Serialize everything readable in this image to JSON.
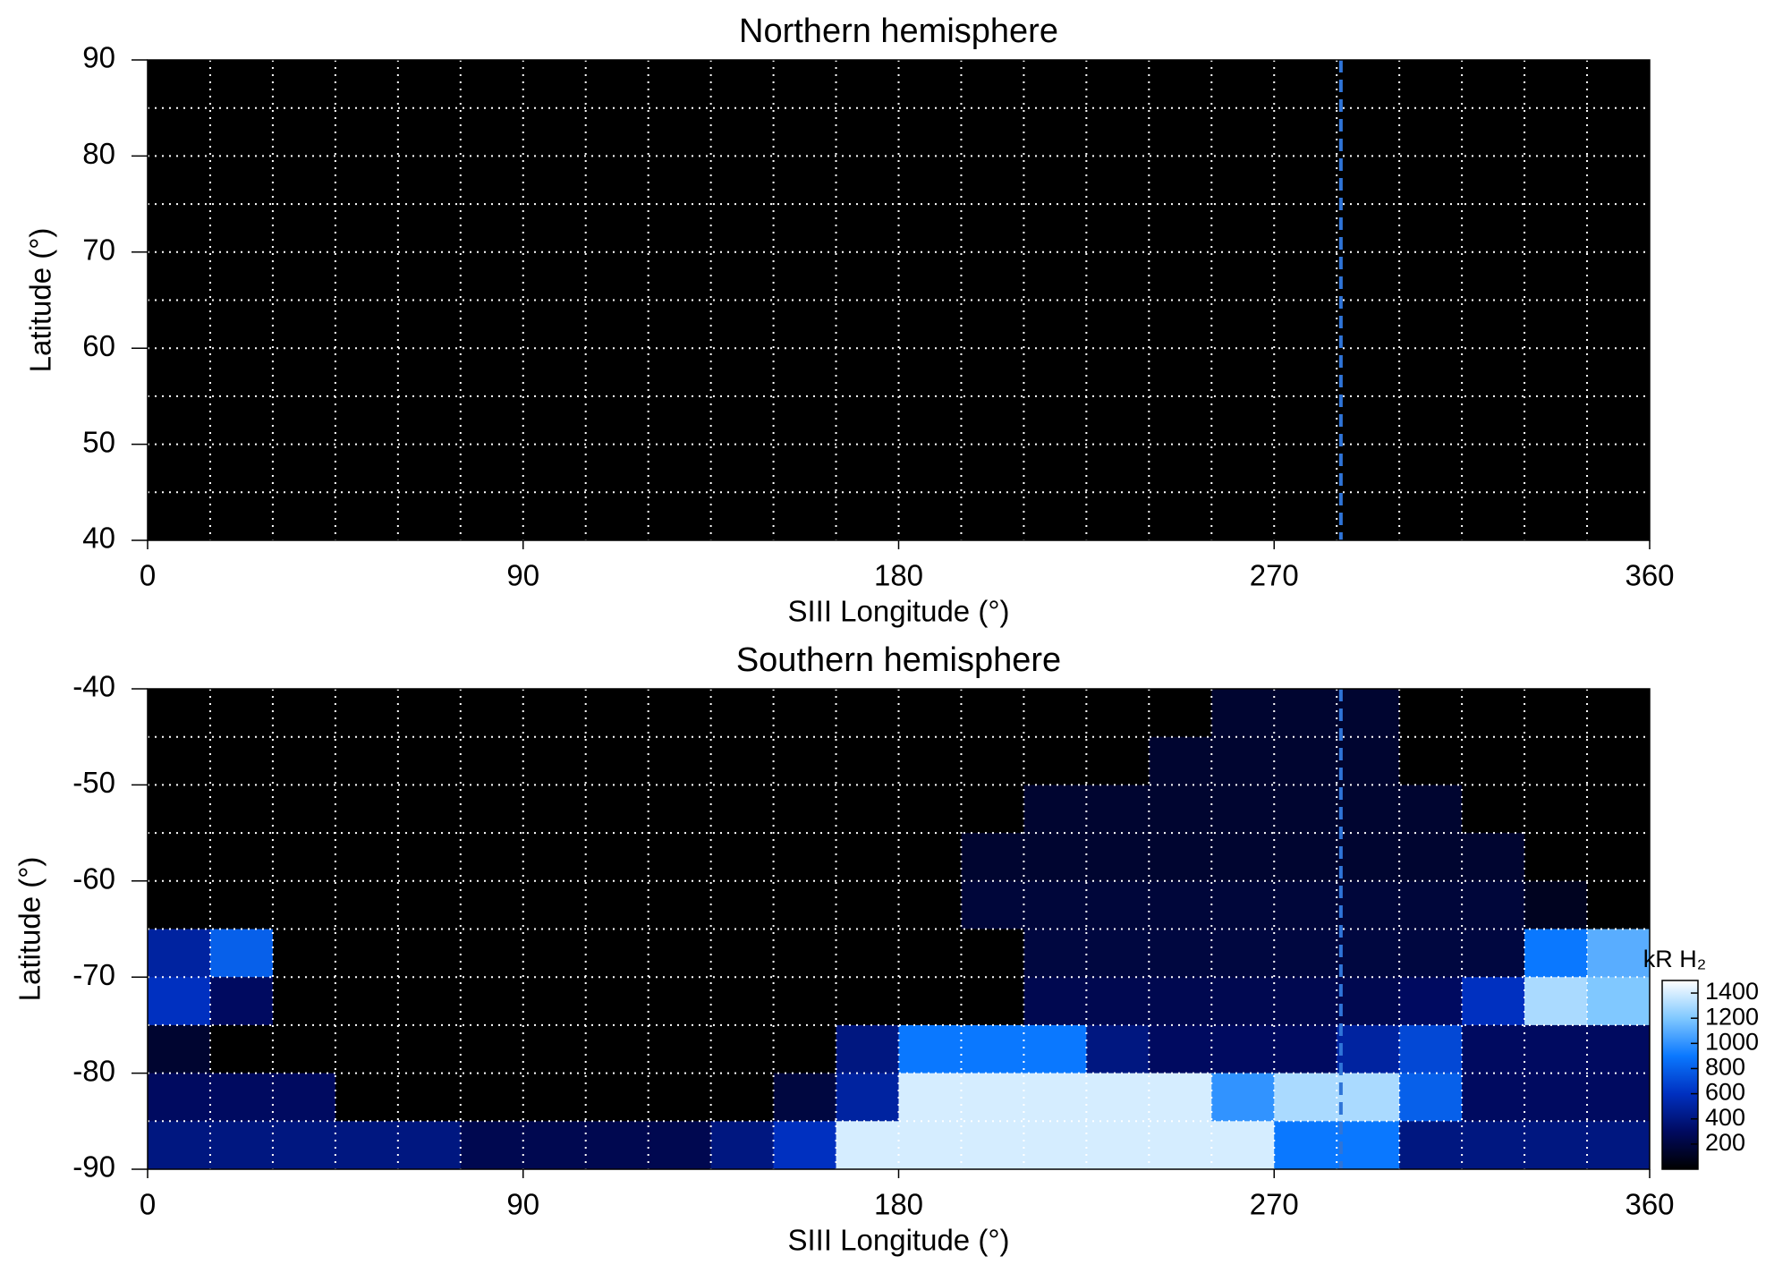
{
  "chart_data": [
    {
      "type": "heatmap",
      "title": "Northern hemisphere",
      "xlabel": "SIII Longitude (°)",
      "ylabel": "Latitude (°)",
      "xlim": [
        0,
        360
      ],
      "xticks": [
        0,
        90,
        180,
        270,
        360
      ],
      "ylim": [
        40,
        90
      ],
      "yticks": [
        40,
        50,
        60,
        70,
        80,
        90
      ],
      "xgrid": [
        15,
        30,
        45,
        60,
        75,
        90,
        105,
        120,
        135,
        150,
        165,
        180,
        195,
        210,
        225,
        240,
        255,
        270,
        285,
        300,
        315,
        330,
        345
      ],
      "ygrid": [
        45,
        50,
        55,
        60,
        65,
        70,
        75,
        80,
        85
      ],
      "vline": 286,
      "vline_color": "#2f74d8"
    },
    {
      "type": "heatmap",
      "title": "Southern hemisphere",
      "xlabel": "SIII Longitude (°)",
      "ylabel": "Latitude (°)",
      "xlim": [
        0,
        360
      ],
      "xticks": [
        0,
        90,
        180,
        270,
        360
      ],
      "ylim": [
        -90,
        -40
      ],
      "yticks": [
        -90,
        -80,
        -70,
        -60,
        -50,
        -40
      ],
      "xgrid": [
        15,
        30,
        45,
        60,
        75,
        90,
        105,
        120,
        135,
        150,
        165,
        180,
        195,
        210,
        225,
        240,
        255,
        270,
        285,
        300,
        315,
        330,
        345
      ],
      "ygrid": [
        -85,
        -80,
        -75,
        -70,
        -65,
        -60,
        -55,
        -50,
        -45
      ],
      "vline": 286,
      "vline_color": "#2f74d8",
      "xbins": [
        0,
        15,
        30,
        45,
        60,
        75,
        90,
        105,
        120,
        135,
        150,
        165,
        180,
        195,
        210,
        225,
        240,
        255,
        270,
        285,
        300,
        315,
        330,
        345,
        360
      ],
      "ybins": [
        -40,
        -45,
        -50,
        -55,
        -60,
        -65,
        -70,
        -75,
        -80,
        -85,
        -90
      ],
      "z": [
        [
          0,
          0,
          0,
          0,
          0,
          0,
          0,
          0,
          0,
          0,
          0,
          0,
          0,
          0,
          0,
          0,
          0,
          150,
          150,
          150,
          0,
          0,
          0,
          0
        ],
        [
          0,
          0,
          0,
          0,
          0,
          0,
          0,
          0,
          0,
          0,
          0,
          0,
          0,
          0,
          0,
          0,
          150,
          150,
          150,
          150,
          0,
          0,
          0,
          0
        ],
        [
          0,
          0,
          0,
          0,
          0,
          0,
          0,
          0,
          0,
          0,
          0,
          0,
          0,
          0,
          150,
          150,
          150,
          150,
          150,
          150,
          150,
          0,
          0,
          0
        ],
        [
          0,
          0,
          0,
          0,
          0,
          0,
          0,
          0,
          0,
          0,
          0,
          0,
          0,
          150,
          150,
          150,
          150,
          150,
          150,
          150,
          150,
          150,
          0,
          0
        ],
        [
          0,
          0,
          0,
          0,
          0,
          0,
          0,
          0,
          0,
          0,
          0,
          0,
          0,
          180,
          180,
          180,
          180,
          180,
          180,
          180,
          180,
          180,
          100,
          0
        ],
        [
          500,
          800,
          0,
          0,
          0,
          0,
          0,
          0,
          0,
          0,
          0,
          0,
          0,
          0,
          200,
          200,
          200,
          200,
          200,
          200,
          200,
          200,
          900,
          1100
        ],
        [
          600,
          300,
          0,
          0,
          0,
          0,
          0,
          0,
          0,
          0,
          0,
          0,
          0,
          0,
          250,
          250,
          250,
          250,
          250,
          250,
          300,
          600,
          1300,
          1200
        ],
        [
          150,
          0,
          0,
          0,
          0,
          0,
          0,
          0,
          0,
          0,
          0,
          400,
          900,
          900,
          900,
          400,
          300,
          300,
          300,
          500,
          700,
          300,
          300,
          300
        ],
        [
          300,
          300,
          300,
          0,
          0,
          0,
          0,
          0,
          0,
          0,
          200,
          500,
          1400,
          1400,
          1400,
          1400,
          1400,
          1000,
          1300,
          1300,
          800,
          300,
          300,
          300
        ],
        [
          400,
          400,
          400,
          400,
          400,
          250,
          250,
          250,
          250,
          400,
          600,
          1400,
          1400,
          1400,
          1400,
          1400,
          1400,
          1400,
          900,
          900,
          400,
          400,
          400,
          400
        ]
      ],
      "colorbar": {
        "label": "kR H₂",
        "lim": [
          0,
          1500
        ],
        "ticks": [
          200,
          400,
          600,
          800,
          1000,
          1200,
          1400
        ],
        "colors": [
          "#000000",
          "#000a60",
          "#0030c0",
          "#0a78ff",
          "#80c8ff",
          "#ffffff"
        ]
      }
    }
  ]
}
